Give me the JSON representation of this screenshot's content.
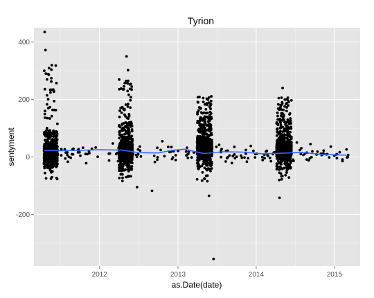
{
  "chart_data": {
    "type": "scatter",
    "title": "Tyrion",
    "xlabel": "as.Date(date)",
    "ylabel": "sentyment",
    "x_axis_kind": "date",
    "x_tick_labels": [
      "2012",
      "2013",
      "2014",
      "2015"
    ],
    "y_tick_labels": [
      "-200",
      "0",
      "200",
      "400"
    ],
    "y_ticks": [
      -200,
      0,
      200,
      400
    ],
    "ylim": [
      -380,
      450
    ],
    "grid": true,
    "legend": "none",
    "colors": {
      "panel_background": "#e5e5e5",
      "grid_major": "#ffffff",
      "grid_minor": "#f2f2f2",
      "points": "#000000",
      "smooth_line": "#3366ff",
      "tick_text": "#4d4d4d"
    },
    "series": [
      {
        "kind": "points",
        "clusters": [
          {
            "x_start": "2011-04-17",
            "x_end": "2011-06-19",
            "y_core_min": -40,
            "y_core_max": 90,
            "y_max": 435,
            "y_min": -45
          },
          {
            "x_start": "2012-04-01",
            "x_end": "2012-06-03",
            "y_core_min": -50,
            "y_core_max": 120,
            "y_max": 350,
            "y_min": -105
          },
          {
            "x_start": "2013-03-31",
            "x_end": "2013-06-09",
            "y_core_min": -45,
            "y_core_max": 140,
            "y_max": 245,
            "y_min": -355
          },
          {
            "x_start": "2014-04-06",
            "x_end": "2014-06-15",
            "y_core_min": -45,
            "y_core_max": 130,
            "y_max": 240,
            "y_min": -145
          }
        ],
        "outliers": [
          {
            "x": "2011-04-20",
            "y": 435
          },
          {
            "x": "2011-04-24",
            "y": 372
          },
          {
            "x": "2011-05-01",
            "y": 270
          },
          {
            "x": "2012-05-06",
            "y": 350
          },
          {
            "x": "2012-05-13",
            "y": 302
          },
          {
            "x": "2012-06-24",
            "y": -105
          },
          {
            "x": "2012-09-02",
            "y": -118
          },
          {
            "x": "2013-06-16",
            "y": -355
          },
          {
            "x": "2013-05-26",
            "y": -135
          },
          {
            "x": "2014-04-20",
            "y": -142
          },
          {
            "x": "2014-05-04",
            "y": 240
          }
        ],
        "sparse_between_seasons": true
      },
      {
        "kind": "smooth",
        "x": [
          "2011-04-17",
          "2011-07-01",
          "2011-10-01",
          "2012-01-01",
          "2012-04-15",
          "2012-07-01",
          "2012-10-01",
          "2012-12-01",
          "2013-02-01",
          "2013-05-01",
          "2013-08-01",
          "2013-11-01",
          "2014-02-01",
          "2014-05-01",
          "2014-08-01",
          "2014-11-01",
          "2015-03-01"
        ],
        "y": [
          23,
          22,
          23,
          25,
          24,
          15,
          14,
          23,
          27,
          12,
          18,
          17,
          11,
          13,
          16,
          9,
          6
        ]
      }
    ],
    "x_range": [
      "2011-03-01",
      "2015-05-01"
    ]
  }
}
